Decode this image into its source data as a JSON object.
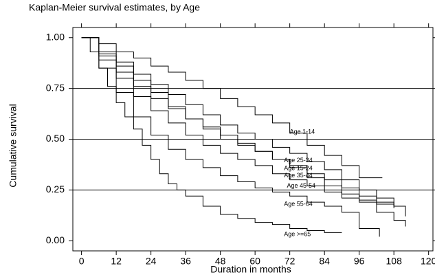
{
  "chart_data": {
    "type": "step",
    "title": "Kaplan-Meier survival estimates, by Age",
    "xlabel": "Duration in months",
    "ylabel": "Cumulative survival",
    "xlim": [
      -3,
      121.5
    ],
    "ylim": [
      -0.05,
      1.05
    ],
    "xticks": [
      0,
      12,
      24,
      36,
      48,
      60,
      72,
      84,
      96,
      108,
      120
    ],
    "yticks": [
      {
        "value": 0,
        "label": "0.00"
      },
      {
        "value": 0.25,
        "label": "0.25"
      },
      {
        "value": 0.5,
        "label": "0.50"
      },
      {
        "value": 0.75,
        "label": "0.75"
      },
      {
        "value": 1,
        "label": "1.00"
      }
    ],
    "grid": true,
    "series": [
      {
        "name": "Age 1-14",
        "color": "#000000",
        "x": [
          0,
          6,
          12,
          18,
          24,
          30,
          36,
          42,
          48,
          54,
          60,
          66,
          72,
          78,
          84,
          90,
          96,
          104
        ],
        "values": [
          1,
          0.97,
          0.93,
          0.9,
          0.86,
          0.83,
          0.79,
          0.75,
          0.7,
          0.66,
          0.62,
          0.58,
          0.53,
          0.47,
          0.42,
          0.37,
          0.31,
          0.31
        ]
      },
      {
        "name": "Age 25-34",
        "color": "#000000",
        "x": [
          0,
          6,
          12,
          18,
          24,
          30,
          36,
          42,
          48,
          54,
          60,
          66,
          72,
          78,
          84,
          90,
          96,
          102,
          108,
          112
        ],
        "values": [
          1,
          0.93,
          0.88,
          0.82,
          0.77,
          0.72,
          0.67,
          0.62,
          0.57,
          0.53,
          0.5,
          0.46,
          0.43,
          0.39,
          0.35,
          0.3,
          0.25,
          0.21,
          0.17,
          0.17
        ]
      },
      {
        "name": "Age 15-24",
        "color": "#000000",
        "x": [
          0,
          6,
          12,
          18,
          24,
          30,
          36,
          42,
          48,
          54,
          60,
          66,
          72,
          78,
          84,
          90,
          96,
          102,
          108,
          112
        ],
        "values": [
          1,
          0.92,
          0.86,
          0.79,
          0.73,
          0.66,
          0.6,
          0.56,
          0.52,
          0.48,
          0.44,
          0.4,
          0.37,
          0.33,
          0.3,
          0.26,
          0.22,
          0.19,
          0.17,
          0.12
        ]
      },
      {
        "name": "Age 35-44",
        "color": "#000000",
        "x": [
          0,
          6,
          12,
          18,
          24,
          30,
          36,
          42,
          48,
          54,
          60,
          66,
          72,
          78,
          84,
          90,
          96,
          102,
          108
        ],
        "values": [
          1,
          0.91,
          0.83,
          0.76,
          0.7,
          0.65,
          0.6,
          0.55,
          0.5,
          0.47,
          0.44,
          0.4,
          0.36,
          0.31,
          0.27,
          0.23,
          0.2,
          0.18,
          0.16
        ]
      },
      {
        "name": "Age 45-54",
        "color": "#000000",
        "x": [
          0,
          6,
          12,
          18,
          24,
          30,
          36,
          42,
          48,
          54,
          60,
          66,
          72,
          78,
          84,
          90,
          96,
          102,
          108,
          112
        ],
        "values": [
          1,
          0.89,
          0.8,
          0.71,
          0.64,
          0.58,
          0.52,
          0.47,
          0.43,
          0.4,
          0.37,
          0.33,
          0.3,
          0.27,
          0.24,
          0.21,
          0.19,
          0.14,
          0.1,
          0.07
        ]
      },
      {
        "name": "Age 55-64",
        "color": "#000000",
        "x": [
          0,
          6,
          12,
          18,
          24,
          30,
          36,
          42,
          48,
          54,
          60,
          66,
          72,
          78,
          84,
          90,
          96,
          103
        ],
        "values": [
          1,
          0.85,
          0.73,
          0.61,
          0.52,
          0.45,
          0.4,
          0.36,
          0.32,
          0.29,
          0.26,
          0.24,
          0.22,
          0.19,
          0.17,
          0.14,
          0.06,
          0.02
        ]
      },
      {
        "name": "Age >=65",
        "color": "#000000",
        "x": [
          0,
          3,
          6,
          9,
          12,
          15,
          18,
          21,
          24,
          27,
          30,
          33,
          36,
          42,
          48,
          54,
          60,
          66,
          72,
          78,
          84,
          90
        ],
        "values": [
          1,
          0.93,
          0.85,
          0.76,
          0.68,
          0.61,
          0.55,
          0.47,
          0.4,
          0.33,
          0.28,
          0.25,
          0.22,
          0.17,
          0.13,
          0.11,
          0.09,
          0.08,
          0.06,
          0.05,
          0.04,
          0.04
        ]
      }
    ]
  }
}
